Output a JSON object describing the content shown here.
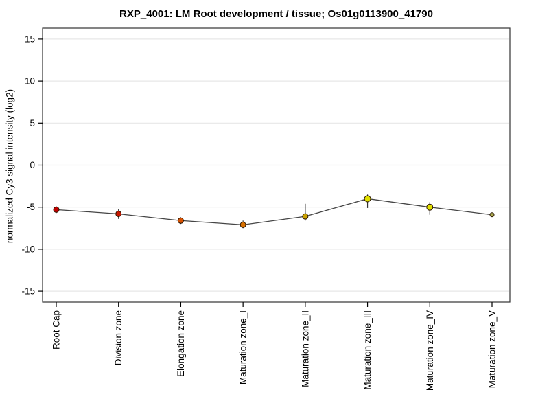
{
  "title": "RXP_4001: LM Root development / tissue; Os01g0113900_41790",
  "chart_data": {
    "type": "line",
    "title": "RXP_4001: LM Root development / tissue; Os01g0113900_41790",
    "xlabel": "",
    "ylabel": "normalized Cy3 signal intensity (log2)",
    "ylim": [
      -16.3,
      16.3
    ],
    "yticks": [
      15,
      10,
      5,
      0,
      -5,
      -10,
      -15
    ],
    "grid": true,
    "legend": false,
    "categories": [
      "Root Cap",
      "Division zone",
      "Elongation zone",
      "Maturation zone_I",
      "Maturation zone_II",
      "Maturation zone_III",
      "Maturation zone_IV",
      "Maturation zone_V"
    ],
    "series": [
      {
        "name": "Cy3 signal",
        "values": [
          -5.3,
          -5.8,
          -6.6,
          -7.1,
          -6.1,
          -4.0,
          -5.0,
          -5.9
        ],
        "error_high": [
          -4.9,
          -5.2,
          -6.2,
          -6.6,
          -4.6,
          -3.5,
          -4.4,
          -5.7
        ],
        "error_low": [
          -5.7,
          -6.4,
          -7.0,
          -7.5,
          -6.6,
          -5.1,
          -5.9,
          -6.1
        ],
        "point_colors": [
          "#c00000",
          "#c81800",
          "#d85000",
          "#d87000",
          "#c8a000",
          "#e0e000",
          "#e0e000",
          "#a8a850"
        ],
        "point_sizes": [
          4,
          4,
          4,
          4,
          4,
          4.5,
          4.5,
          3
        ]
      }
    ],
    "colors": {
      "grid": "#e7e7e7",
      "frame": "#333333",
      "line": "#454545",
      "error_bar": "#333333",
      "tick": "#000000",
      "point_stroke": "#2b1600"
    }
  }
}
